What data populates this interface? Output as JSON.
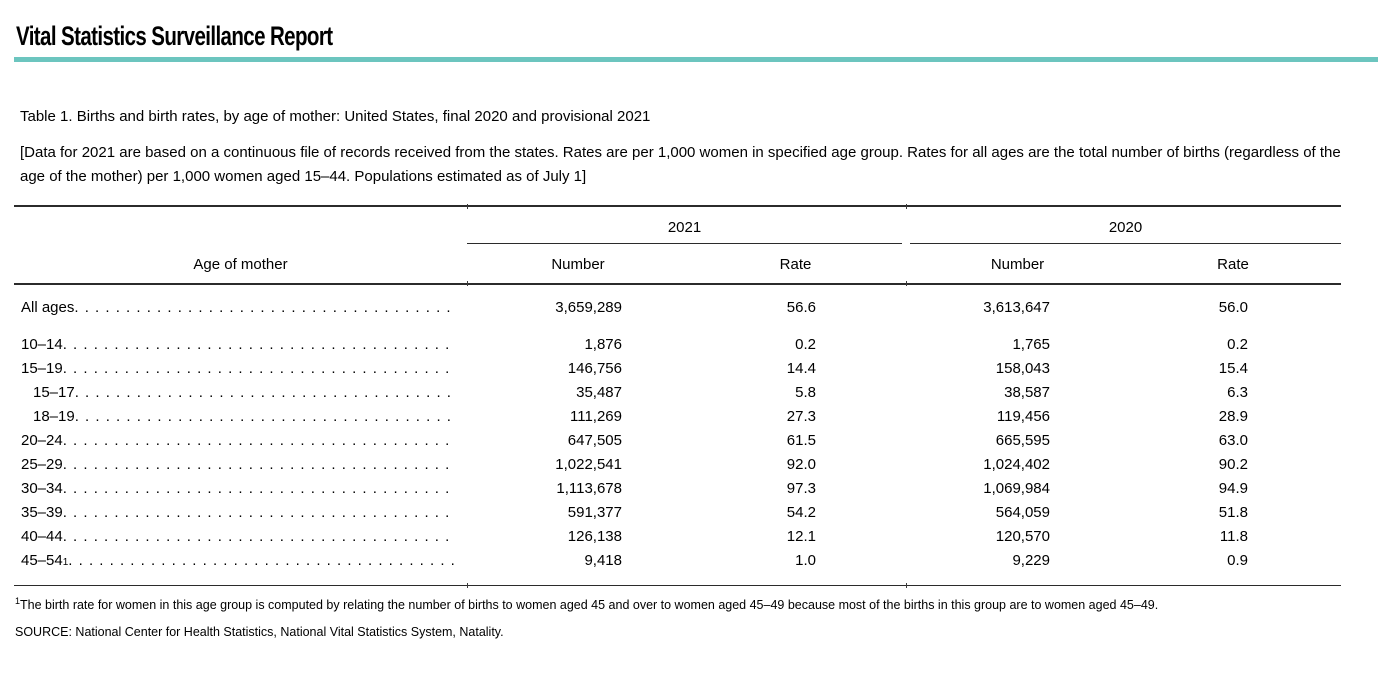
{
  "page": {
    "title": "Vital Statistics Surveillance Report"
  },
  "colors": {
    "accent_teal": "#6cc5bf",
    "rule_color": "#2b2b2b"
  },
  "table": {
    "caption": "Table 1. Births and birth rates, by age of mother: United States, final 2020 and provisional 2021",
    "bracket_note": "[Data for 2021 are based on a continuous file of records received from the states. Rates are per 1,000 women in specified age group. Rates for all ages are the total number of births (regardless of the age of the mother) per 1,000 women aged 15–44. Populations estimated as of July 1]",
    "stub_header": "Age of mother",
    "year_groups": [
      {
        "label": "2021",
        "columns": [
          "Number",
          "Rate"
        ]
      },
      {
        "label": "2020",
        "columns": [
          "Number",
          "Rate"
        ]
      }
    ],
    "rows": [
      {
        "label": "All ages",
        "sup": "",
        "indent": false,
        "spacer_after": true,
        "values": [
          "3,659,289",
          "56.6",
          "3,613,647",
          "56.0"
        ]
      },
      {
        "label": "10–14",
        "sup": "",
        "indent": false,
        "spacer_after": false,
        "values": [
          "1,876",
          "0.2",
          "1,765",
          "0.2"
        ]
      },
      {
        "label": "15–19",
        "sup": "",
        "indent": false,
        "spacer_after": false,
        "values": [
          "146,756",
          "14.4",
          "158,043",
          "15.4"
        ]
      },
      {
        "label": "15–17",
        "sup": "",
        "indent": true,
        "spacer_after": false,
        "values": [
          "35,487",
          "5.8",
          "38,587",
          "6.3"
        ]
      },
      {
        "label": "18–19",
        "sup": "",
        "indent": true,
        "spacer_after": false,
        "values": [
          "111,269",
          "27.3",
          "119,456",
          "28.9"
        ]
      },
      {
        "label": "20–24",
        "sup": "",
        "indent": false,
        "spacer_after": false,
        "values": [
          "647,505",
          "61.5",
          "665,595",
          "63.0"
        ]
      },
      {
        "label": "25–29",
        "sup": "",
        "indent": false,
        "spacer_after": false,
        "values": [
          "1,022,541",
          "92.0",
          "1,024,402",
          "90.2"
        ]
      },
      {
        "label": "30–34",
        "sup": "",
        "indent": false,
        "spacer_after": false,
        "values": [
          "1,113,678",
          "97.3",
          "1,069,984",
          "94.9"
        ]
      },
      {
        "label": "35–39",
        "sup": "",
        "indent": false,
        "spacer_after": false,
        "values": [
          "591,377",
          "54.2",
          "564,059",
          "51.8"
        ]
      },
      {
        "label": "40–44",
        "sup": "",
        "indent": false,
        "spacer_after": false,
        "values": [
          "126,138",
          "12.1",
          "120,570",
          "11.8"
        ]
      },
      {
        "label": "45–54",
        "sup": "1",
        "indent": false,
        "spacer_after": false,
        "values": [
          "9,418",
          "1.0",
          "9,229",
          "0.9"
        ]
      }
    ]
  },
  "footnote": {
    "marker": "1",
    "text": "The birth rate for women in this age group is computed by relating the number of births to women aged 45 and over to women aged 45–49 because most of the births in this group are to women aged 45–49."
  },
  "source": "SOURCE: National Center for Health Statistics, National Vital Statistics System, Natality."
}
